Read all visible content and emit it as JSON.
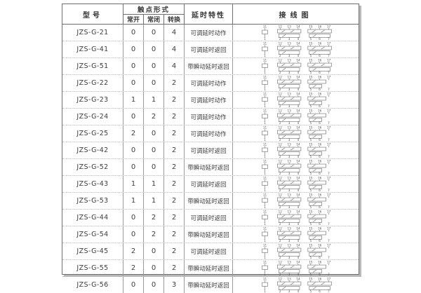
{
  "page": {
    "background": "#ffffff"
  },
  "colors": {
    "border_dark": "#6e6e6e",
    "border_light": "#9a9a9a",
    "row_dotted": "#bdbdbd",
    "shadow": "#b9b9b9",
    "text": "#3a3a3a",
    "diagram_stroke": "#666666"
  },
  "table": {
    "header": {
      "model": "型号",
      "contact_group": "触点形式",
      "no": "常开",
      "nc": "常闭",
      "changeover": "转换",
      "delay": "延时特性",
      "wiring": "接线图"
    },
    "wiring_terminals": {
      "coil_top": "11",
      "coil_bottom": "1",
      "group1_top": [
        "12",
        "13",
        "14"
      ],
      "group1_bottom": [
        "2",
        "3",
        "4"
      ],
      "group2_top": [
        "15",
        "16",
        "17"
      ],
      "group2_bottom": [
        "5",
        "6",
        "7"
      ]
    },
    "rows": [
      {
        "model": "JZS-G-21",
        "no": "0",
        "nc": "0",
        "changeover": "4",
        "delay": "可调延时动作",
        "diagram_style": "full"
      },
      {
        "model": "JZS-G-41",
        "no": "0",
        "nc": "0",
        "changeover": "4",
        "delay": "可调延时返回",
        "diagram_style": "full"
      },
      {
        "model": "JZS-G-51",
        "no": "0",
        "nc": "0",
        "changeover": "4",
        "delay": "带瞬动延时返回",
        "diagram_style": "full"
      },
      {
        "model": "JZS-G-22",
        "no": "0",
        "nc": "0",
        "changeover": "2",
        "delay": "可调延时动作",
        "diagram_style": "reduced"
      },
      {
        "model": "JZS-G-23",
        "no": "1",
        "nc": "1",
        "changeover": "2",
        "delay": "可调延时动作",
        "diagram_style": "reduced"
      },
      {
        "model": "JZS-G-24",
        "no": "0",
        "nc": "2",
        "changeover": "2",
        "delay": "可调延时动作",
        "diagram_style": "reduced"
      },
      {
        "model": "JZS-G-25",
        "no": "2",
        "nc": "0",
        "changeover": "2",
        "delay": "可调延时动作",
        "diagram_style": "reduced"
      },
      {
        "model": "JZS-G-42",
        "no": "0",
        "nc": "0",
        "changeover": "2",
        "delay": "可调延时返回",
        "diagram_style": "reduced"
      },
      {
        "model": "JZS-G-52",
        "no": "0",
        "nc": "0",
        "changeover": "2",
        "delay": "带瞬动延时返回",
        "diagram_style": "reduced"
      },
      {
        "model": "JZS-G-43",
        "no": "1",
        "nc": "1",
        "changeover": "2",
        "delay": "可调延时返回",
        "diagram_style": "reduced"
      },
      {
        "model": "JZS-G-53",
        "no": "1",
        "nc": "1",
        "changeover": "2",
        "delay": "带瞬动延时返回",
        "diagram_style": "reduced"
      },
      {
        "model": "JZS-G-44",
        "no": "0",
        "nc": "2",
        "changeover": "2",
        "delay": "可调延时返回",
        "diagram_style": "reduced"
      },
      {
        "model": "JZS-G-54",
        "no": "0",
        "nc": "2",
        "changeover": "2",
        "delay": "带瞬动延时返回",
        "diagram_style": "reduced"
      },
      {
        "model": "JZS-G-45",
        "no": "2",
        "nc": "0",
        "changeover": "2",
        "delay": "可调延时返回",
        "diagram_style": "reduced"
      },
      {
        "model": "JZS-G-55",
        "no": "2",
        "nc": "0",
        "changeover": "2",
        "delay": "带瞬动延时返回",
        "diagram_style": "reduced"
      },
      {
        "model": "JZS-G-56",
        "no": "0",
        "nc": "0",
        "changeover": "3",
        "delay": "带瞬动延时返回",
        "diagram_style": "full"
      }
    ]
  }
}
